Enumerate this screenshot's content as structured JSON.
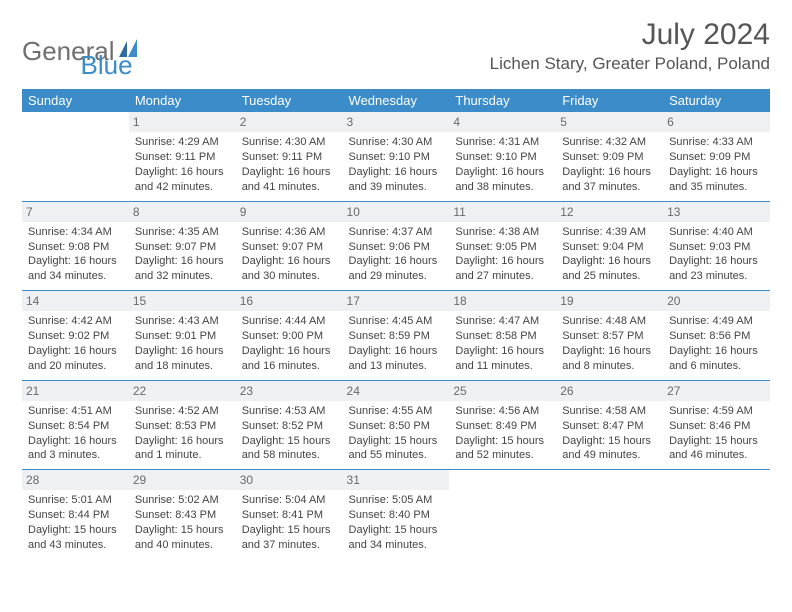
{
  "brand": {
    "part1": "General",
    "part2": "Blue"
  },
  "title": "July 2024",
  "location": "Lichen Stary, Greater Poland, Poland",
  "day_headers": [
    "Sunday",
    "Monday",
    "Tuesday",
    "Wednesday",
    "Thursday",
    "Friday",
    "Saturday"
  ],
  "colors": {
    "accent": "#3b8cc9",
    "header_text": "#ffffff",
    "daynum_bg": "#eef1f4",
    "text": "#444444",
    "brand_gray": "#6f6f6f"
  },
  "weeks": [
    [
      {
        "n": "",
        "sr": "",
        "ss": "",
        "dl": ""
      },
      {
        "n": "1",
        "sr": "Sunrise: 4:29 AM",
        "ss": "Sunset: 9:11 PM",
        "dl": "Daylight: 16 hours and 42 minutes."
      },
      {
        "n": "2",
        "sr": "Sunrise: 4:30 AM",
        "ss": "Sunset: 9:11 PM",
        "dl": "Daylight: 16 hours and 41 minutes."
      },
      {
        "n": "3",
        "sr": "Sunrise: 4:30 AM",
        "ss": "Sunset: 9:10 PM",
        "dl": "Daylight: 16 hours and 39 minutes."
      },
      {
        "n": "4",
        "sr": "Sunrise: 4:31 AM",
        "ss": "Sunset: 9:10 PM",
        "dl": "Daylight: 16 hours and 38 minutes."
      },
      {
        "n": "5",
        "sr": "Sunrise: 4:32 AM",
        "ss": "Sunset: 9:09 PM",
        "dl": "Daylight: 16 hours and 37 minutes."
      },
      {
        "n": "6",
        "sr": "Sunrise: 4:33 AM",
        "ss": "Sunset: 9:09 PM",
        "dl": "Daylight: 16 hours and 35 minutes."
      }
    ],
    [
      {
        "n": "7",
        "sr": "Sunrise: 4:34 AM",
        "ss": "Sunset: 9:08 PM",
        "dl": "Daylight: 16 hours and 34 minutes."
      },
      {
        "n": "8",
        "sr": "Sunrise: 4:35 AM",
        "ss": "Sunset: 9:07 PM",
        "dl": "Daylight: 16 hours and 32 minutes."
      },
      {
        "n": "9",
        "sr": "Sunrise: 4:36 AM",
        "ss": "Sunset: 9:07 PM",
        "dl": "Daylight: 16 hours and 30 minutes."
      },
      {
        "n": "10",
        "sr": "Sunrise: 4:37 AM",
        "ss": "Sunset: 9:06 PM",
        "dl": "Daylight: 16 hours and 29 minutes."
      },
      {
        "n": "11",
        "sr": "Sunrise: 4:38 AM",
        "ss": "Sunset: 9:05 PM",
        "dl": "Daylight: 16 hours and 27 minutes."
      },
      {
        "n": "12",
        "sr": "Sunrise: 4:39 AM",
        "ss": "Sunset: 9:04 PM",
        "dl": "Daylight: 16 hours and 25 minutes."
      },
      {
        "n": "13",
        "sr": "Sunrise: 4:40 AM",
        "ss": "Sunset: 9:03 PM",
        "dl": "Daylight: 16 hours and 23 minutes."
      }
    ],
    [
      {
        "n": "14",
        "sr": "Sunrise: 4:42 AM",
        "ss": "Sunset: 9:02 PM",
        "dl": "Daylight: 16 hours and 20 minutes."
      },
      {
        "n": "15",
        "sr": "Sunrise: 4:43 AM",
        "ss": "Sunset: 9:01 PM",
        "dl": "Daylight: 16 hours and 18 minutes."
      },
      {
        "n": "16",
        "sr": "Sunrise: 4:44 AM",
        "ss": "Sunset: 9:00 PM",
        "dl": "Daylight: 16 hours and 16 minutes."
      },
      {
        "n": "17",
        "sr": "Sunrise: 4:45 AM",
        "ss": "Sunset: 8:59 PM",
        "dl": "Daylight: 16 hours and 13 minutes."
      },
      {
        "n": "18",
        "sr": "Sunrise: 4:47 AM",
        "ss": "Sunset: 8:58 PM",
        "dl": "Daylight: 16 hours and 11 minutes."
      },
      {
        "n": "19",
        "sr": "Sunrise: 4:48 AM",
        "ss": "Sunset: 8:57 PM",
        "dl": "Daylight: 16 hours and 8 minutes."
      },
      {
        "n": "20",
        "sr": "Sunrise: 4:49 AM",
        "ss": "Sunset: 8:56 PM",
        "dl": "Daylight: 16 hours and 6 minutes."
      }
    ],
    [
      {
        "n": "21",
        "sr": "Sunrise: 4:51 AM",
        "ss": "Sunset: 8:54 PM",
        "dl": "Daylight: 16 hours and 3 minutes."
      },
      {
        "n": "22",
        "sr": "Sunrise: 4:52 AM",
        "ss": "Sunset: 8:53 PM",
        "dl": "Daylight: 16 hours and 1 minute."
      },
      {
        "n": "23",
        "sr": "Sunrise: 4:53 AM",
        "ss": "Sunset: 8:52 PM",
        "dl": "Daylight: 15 hours and 58 minutes."
      },
      {
        "n": "24",
        "sr": "Sunrise: 4:55 AM",
        "ss": "Sunset: 8:50 PM",
        "dl": "Daylight: 15 hours and 55 minutes."
      },
      {
        "n": "25",
        "sr": "Sunrise: 4:56 AM",
        "ss": "Sunset: 8:49 PM",
        "dl": "Daylight: 15 hours and 52 minutes."
      },
      {
        "n": "26",
        "sr": "Sunrise: 4:58 AM",
        "ss": "Sunset: 8:47 PM",
        "dl": "Daylight: 15 hours and 49 minutes."
      },
      {
        "n": "27",
        "sr": "Sunrise: 4:59 AM",
        "ss": "Sunset: 8:46 PM",
        "dl": "Daylight: 15 hours and 46 minutes."
      }
    ],
    [
      {
        "n": "28",
        "sr": "Sunrise: 5:01 AM",
        "ss": "Sunset: 8:44 PM",
        "dl": "Daylight: 15 hours and 43 minutes."
      },
      {
        "n": "29",
        "sr": "Sunrise: 5:02 AM",
        "ss": "Sunset: 8:43 PM",
        "dl": "Daylight: 15 hours and 40 minutes."
      },
      {
        "n": "30",
        "sr": "Sunrise: 5:04 AM",
        "ss": "Sunset: 8:41 PM",
        "dl": "Daylight: 15 hours and 37 minutes."
      },
      {
        "n": "31",
        "sr": "Sunrise: 5:05 AM",
        "ss": "Sunset: 8:40 PM",
        "dl": "Daylight: 15 hours and 34 minutes."
      },
      {
        "n": "",
        "sr": "",
        "ss": "",
        "dl": ""
      },
      {
        "n": "",
        "sr": "",
        "ss": "",
        "dl": ""
      },
      {
        "n": "",
        "sr": "",
        "ss": "",
        "dl": ""
      }
    ]
  ]
}
